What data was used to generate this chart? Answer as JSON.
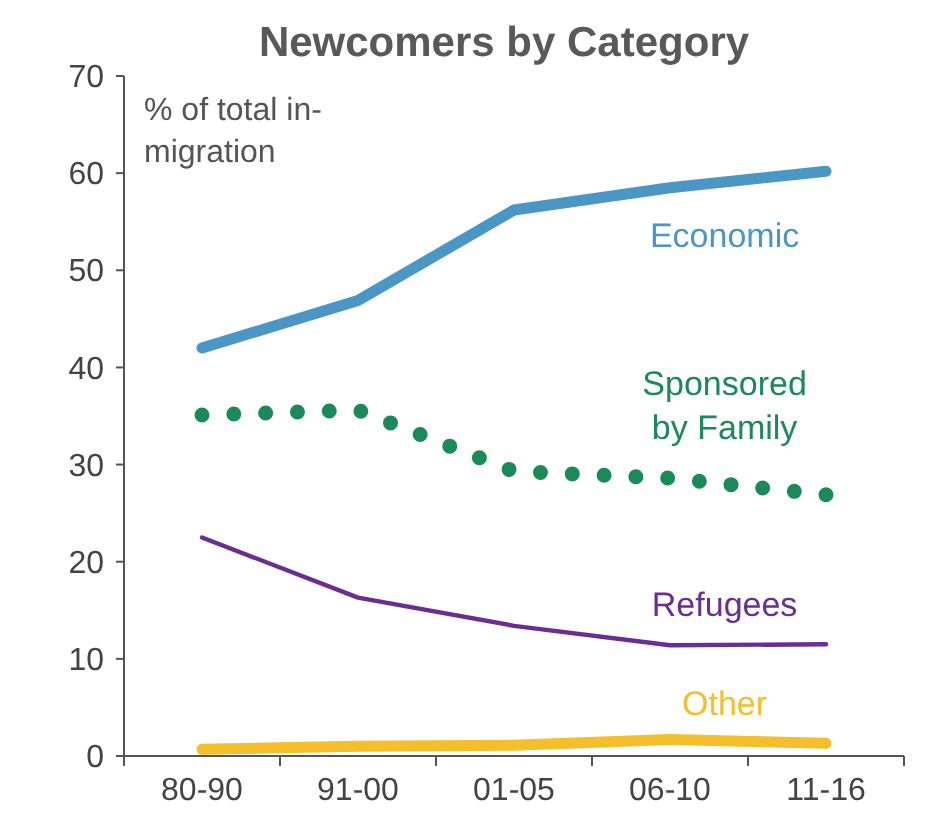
{
  "chart_data": {
    "type": "line",
    "title": "Newcomers by Category",
    "ylabel": "% of total in-migration",
    "categories": [
      "80-90",
      "91-00",
      "01-05",
      "06-10",
      "11-16"
    ],
    "ylim": [
      0,
      70
    ],
    "yticks": [
      0,
      10,
      20,
      30,
      40,
      50,
      60,
      70
    ],
    "grid": false,
    "series": [
      {
        "name": "Economic",
        "color": "#4a96c4",
        "line_style": "solid",
        "values": [
          42,
          46.9,
          56.2,
          58.5,
          60.2
        ]
      },
      {
        "name": "Sponsored by Family",
        "color": "#1a8a5a",
        "line_style": "dotted",
        "values": [
          35.1,
          35.6,
          29.3,
          28.6,
          26.9
        ]
      },
      {
        "name": "Refugees",
        "color": "#6a2d91",
        "line_style": "solid",
        "values": [
          22.5,
          16.3,
          13.4,
          11.4,
          11.5
        ]
      },
      {
        "name": "Other",
        "color": "#f4bf2a",
        "line_style": "solid",
        "values": [
          0.7,
          1.0,
          1.1,
          1.7,
          1.3
        ]
      }
    ]
  }
}
